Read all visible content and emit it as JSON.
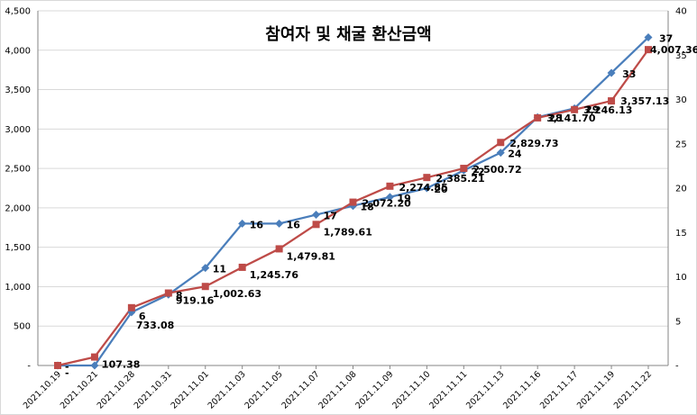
{
  "chart_data": {
    "type": "line",
    "title": "참여자 및 채굴 환산금액",
    "categories": [
      "2021.10.19",
      "2021.10.21",
      "2021.10.28",
      "2021.10.31",
      "2021.11.01",
      "2021.11.03",
      "2021.11.05",
      "2021.11.07",
      "2021.11.08",
      "2021.11.09",
      "2021.11.10",
      "2021.11.11",
      "2021.11.13",
      "2021.11.16",
      "2021.11.17",
      "2021.11.19",
      "2021.11.22"
    ],
    "left_axis": {
      "min": 0,
      "max": 4500,
      "step": 500,
      "tick_labels": [
        "-",
        "500",
        "1,000",
        "1,500",
        "2,000",
        "2,500",
        "3,000",
        "3,500",
        "4,000",
        "4,500"
      ]
    },
    "right_axis": {
      "min": 0,
      "max": 40,
      "step": 5,
      "tick_labels": [
        "-",
        "5",
        "10",
        "15",
        "20",
        "25",
        "30",
        "35",
        "40"
      ]
    },
    "grid": "horizontal",
    "series": [
      {
        "axis": "right",
        "color": "#4a7ebb",
        "marker": "diamond",
        "values": [
          0,
          0,
          6,
          8,
          11,
          16,
          16,
          17,
          18,
          19,
          20,
          22,
          24,
          28,
          29,
          33,
          37
        ],
        "labels": [
          "-",
          "-",
          "6",
          "8",
          "11",
          "16",
          "16",
          "17",
          "18",
          "19",
          "20",
          "22",
          "24",
          "28",
          "29",
          "33",
          "37"
        ]
      },
      {
        "axis": "left",
        "color": "#be4b48",
        "marker": "square",
        "values": [
          0,
          107.38,
          733.08,
          919.16,
          1002.63,
          1245.76,
          1479.81,
          1789.61,
          2072.2,
          2274.85,
          2385.21,
          2500.72,
          2829.73,
          3141.7,
          3246.13,
          3357.13,
          4007.36
        ],
        "labels": [
          "-",
          "107.38",
          "733.08",
          "919.16",
          "1,002.63",
          "1,245.76",
          "1,479.81",
          "1,789.61",
          "2,072.20",
          "2,274.85",
          "2,385.21",
          "2,500.72",
          "2,829.73",
          "3,141.70",
          "3,246.13",
          "3,357.13",
          "4,007.36"
        ]
      }
    ]
  }
}
